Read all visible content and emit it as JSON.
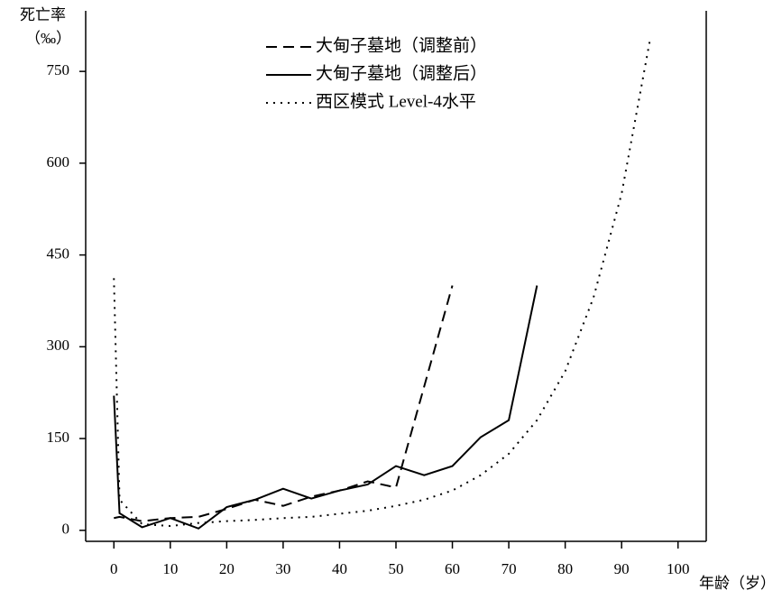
{
  "chart_data": {
    "type": "line",
    "y_label": "死亡率",
    "y_unit": "（‰）",
    "x_label": "年龄（岁）",
    "xlim": [
      -5,
      105
    ],
    "ylim": [
      -18,
      849
    ],
    "xticks": [
      0,
      10,
      20,
      30,
      40,
      50,
      60,
      70,
      80,
      90,
      100
    ],
    "yticks": [
      0,
      150,
      300,
      450,
      600,
      750
    ],
    "series": [
      {
        "name": "大甸子墓地（调整前）",
        "color": "#000000",
        "dash": "dashed",
        "x": [
          0,
          1,
          5,
          10,
          15,
          20,
          25,
          30,
          35,
          40,
          45,
          50,
          60
        ],
        "values": [
          20,
          22,
          15,
          20,
          22,
          35,
          50,
          40,
          55,
          65,
          80,
          70,
          400
        ]
      },
      {
        "name": "大甸子墓地（调整后）",
        "color": "#000000",
        "dash": "solid",
        "x": [
          0,
          1,
          5,
          10,
          15,
          20,
          25,
          30,
          35,
          40,
          45,
          50,
          55,
          60,
          65,
          70,
          75
        ],
        "values": [
          220,
          28,
          5,
          20,
          3,
          38,
          50,
          68,
          52,
          65,
          75,
          105,
          90,
          105,
          152,
          180,
          400
        ]
      },
      {
        "name": "西区模式 Level-4水平",
        "color": "#000000",
        "dash": "dotted",
        "x": [
          0,
          1,
          5,
          10,
          15,
          20,
          25,
          30,
          35,
          40,
          45,
          50,
          55,
          60,
          65,
          70,
          75,
          80,
          85,
          90,
          95
        ],
        "values": [
          412,
          50,
          10,
          7,
          12,
          15,
          17,
          20,
          22,
          27,
          32,
          40,
          50,
          65,
          90,
          125,
          180,
          260,
          380,
          550,
          800
        ]
      }
    ]
  }
}
